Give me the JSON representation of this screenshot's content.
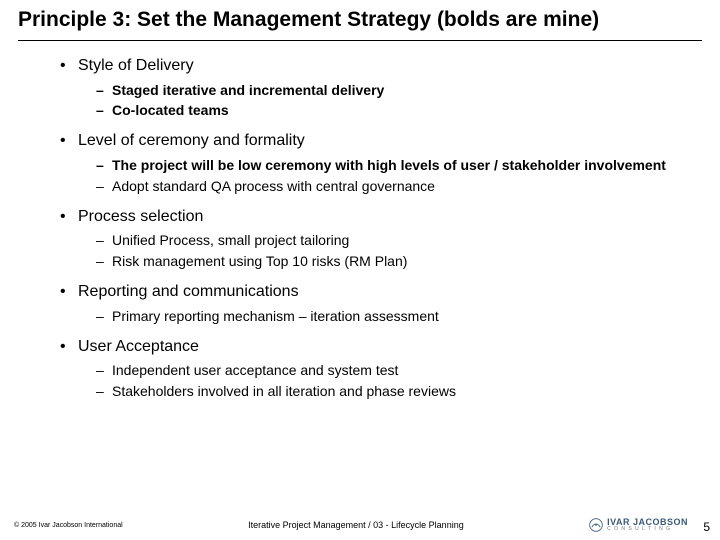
{
  "title": "Principle 3: Set the Management Strategy (bolds are mine)",
  "bullets": [
    {
      "text": "Style of Delivery",
      "sub": [
        {
          "text": "Staged iterative and incremental delivery",
          "bold": true
        },
        {
          "text": "Co-located teams",
          "bold": true
        }
      ]
    },
    {
      "text": "Level of ceremony and formality",
      "sub": [
        {
          "text": "The project will be low ceremony with high levels of user / stakeholder involvement",
          "bold": true
        },
        {
          "text": "Adopt standard QA process with central governance",
          "bold": false
        }
      ]
    },
    {
      "text": "Process selection",
      "sub": [
        {
          "text": "Unified Process, small project tailoring",
          "bold": false
        },
        {
          "text": "Risk management using Top 10 risks (RM Plan)",
          "bold": false
        }
      ]
    },
    {
      "text": "Reporting and communications",
      "sub": [
        {
          "text": "Primary reporting mechanism – iteration assessment",
          "bold": false
        }
      ]
    },
    {
      "text": "User Acceptance",
      "sub": [
        {
          "text": "Independent user acceptance and system test",
          "bold": false
        },
        {
          "text": "Stakeholders involved in all iteration and phase reviews",
          "bold": false
        }
      ]
    }
  ],
  "footer": {
    "copyright": "© 2005 Ivar Jacobson International",
    "center": "Iterative Project Management / 03 - Lifecycle Planning",
    "logo_main": "IVAR JACOBSON",
    "logo_sub": "C O N S U L T I N G",
    "page": "5"
  },
  "style": {
    "bullet1_glyph": "•",
    "bullet2_glyph": "–",
    "logo_color": "#3a5a78"
  }
}
